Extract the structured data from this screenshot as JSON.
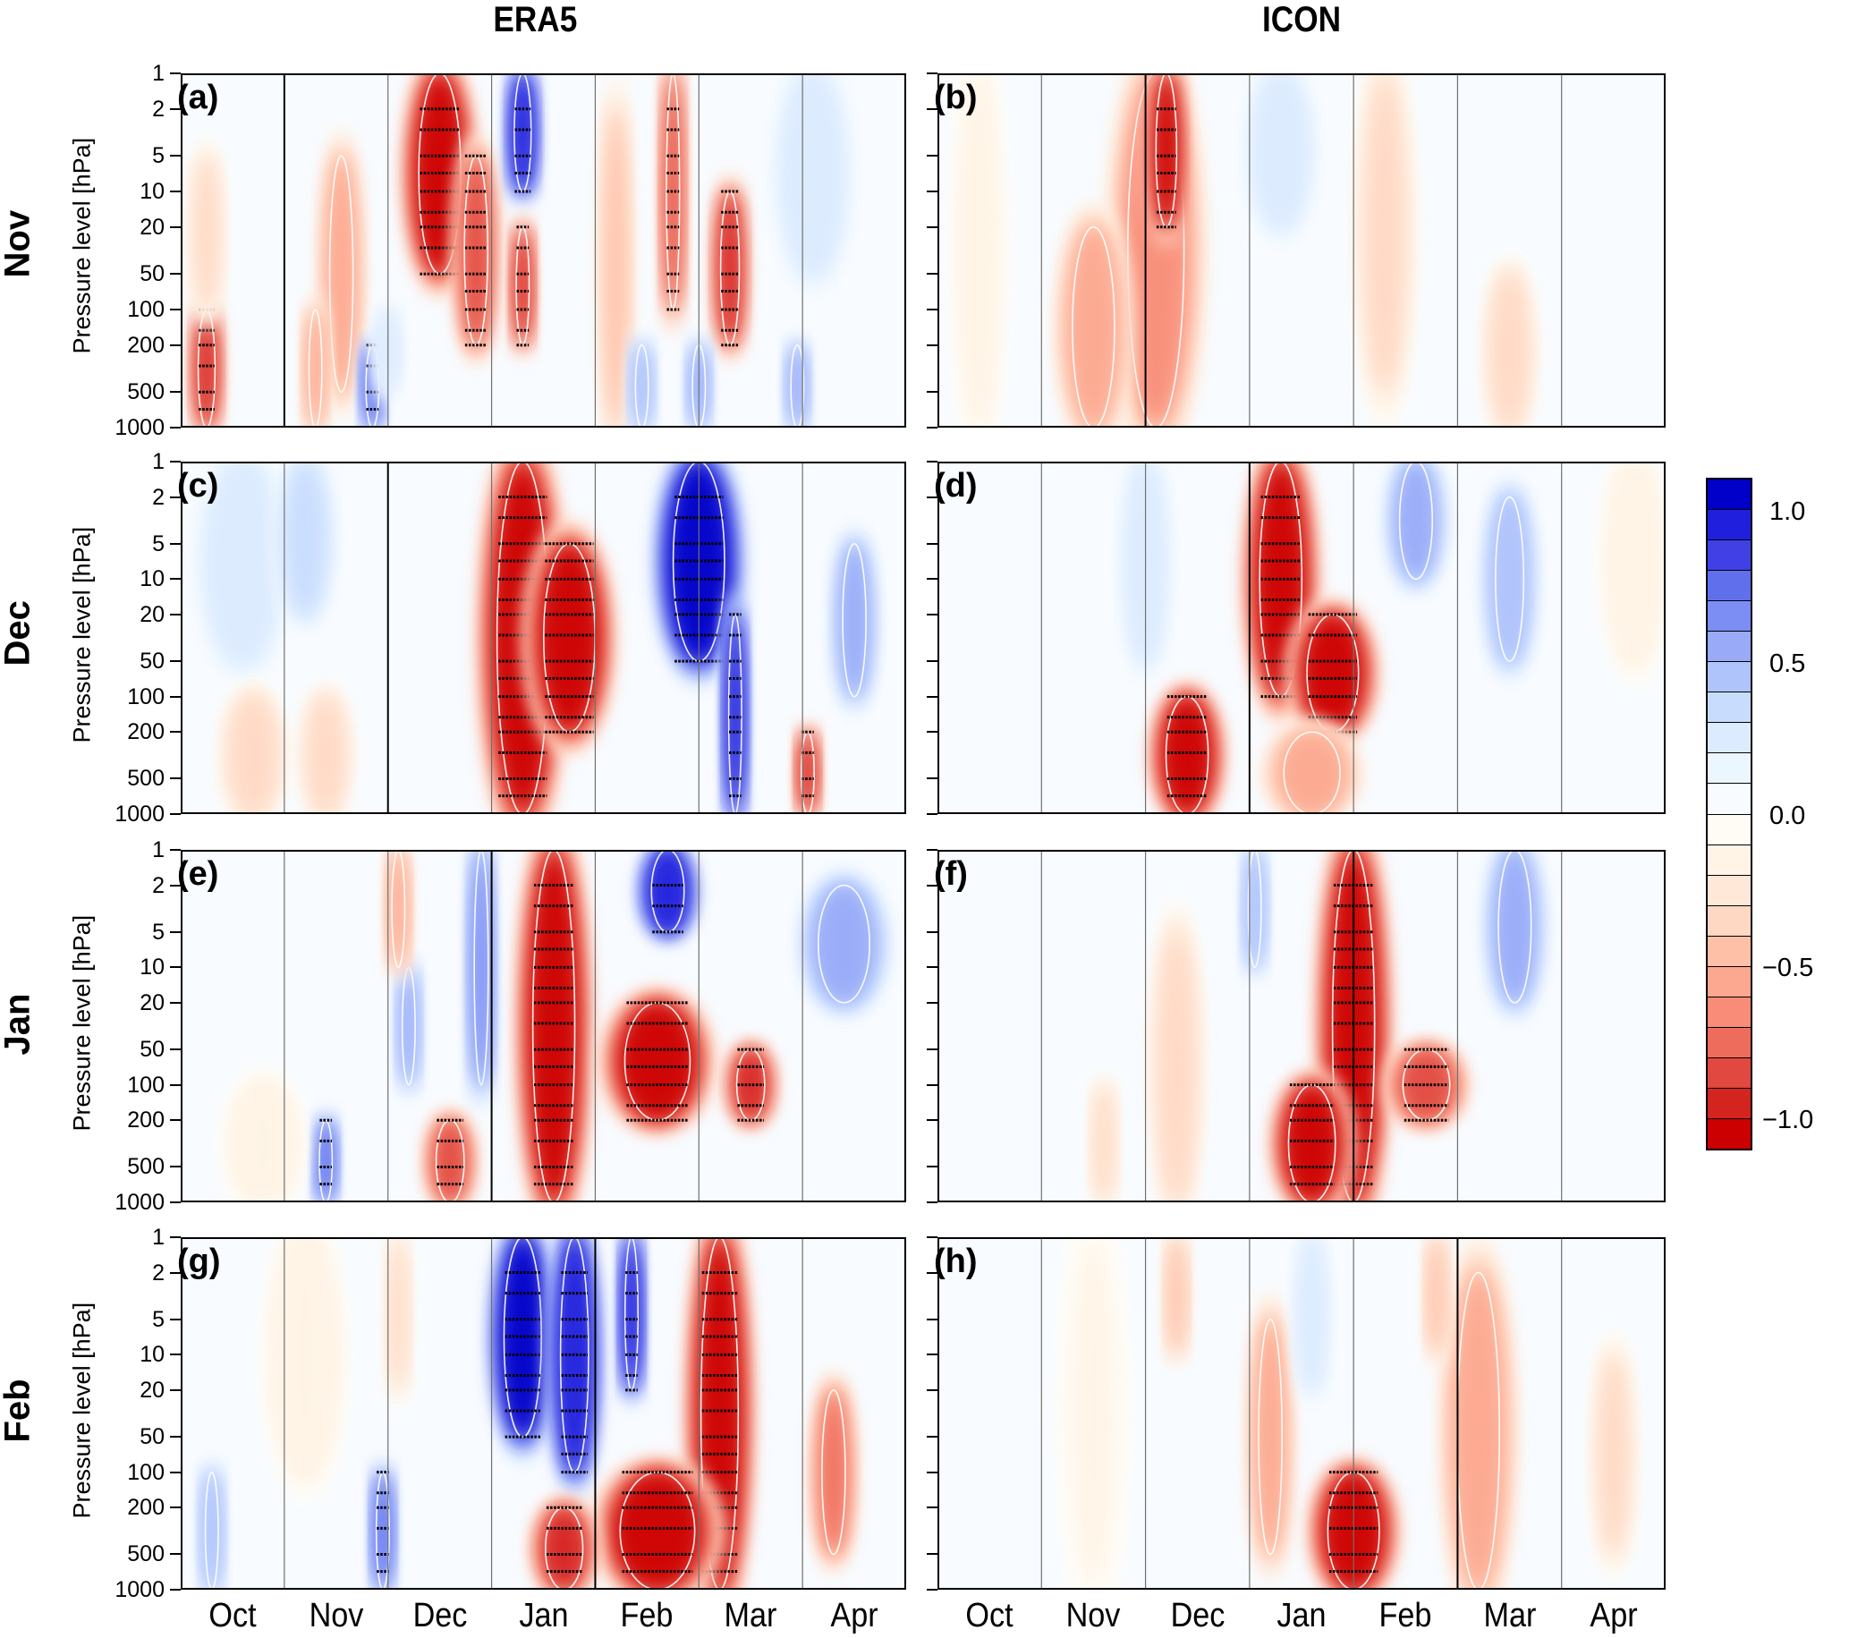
{
  "chart_data": {
    "type": "heatmap",
    "title": "",
    "columns": [
      "ERA5",
      "ICON"
    ],
    "rows": [
      "Nov",
      "Dec",
      "Jan",
      "Feb"
    ],
    "ylabel": "Pressure level [hPa]",
    "y_scale": "log",
    "y_ticks": [
      "1",
      "2",
      "5",
      "10",
      "20",
      "50",
      "100",
      "200",
      "500",
      "1000"
    ],
    "y_range": [
      1,
      1000
    ],
    "x_ticks": [
      "Oct",
      "Nov",
      "Dec",
      "Jan",
      "Feb",
      "Mar",
      "Apr"
    ],
    "x_range_months": [
      0,
      7
    ],
    "colorbar": {
      "ticks": [
        "1.0",
        "0.5",
        "0.0",
        "−0.5",
        "−1.0"
      ],
      "range": [
        -1.1,
        1.1
      ],
      "colors": [
        "#0000c8",
        "#2020dc",
        "#4040e4",
        "#6070ec",
        "#7c8ef4",
        "#98aaf8",
        "#b0c4fc",
        "#c8dcfe",
        "#dcebfe",
        "#ecf6ff",
        "#f8fbff",
        "#fffcf6",
        "#fff4e6",
        "#ffe8d8",
        "#ffd8c4",
        "#ffc0a8",
        "#fca890",
        "#f88c78",
        "#ee6c5c",
        "#e04840",
        "#d42420",
        "#cc0000"
      ]
    },
    "panels": [
      {
        "id": "a",
        "label": "(a)",
        "column": "ERA5",
        "row": "Nov",
        "init_month_index": 1,
        "features": [
          {
            "x": 0.25,
            "p_top": 100,
            "p_bot": 1000,
            "w": 0.18,
            "v": -0.9
          },
          {
            "x": 0.25,
            "p_top": 5,
            "p_bot": 100,
            "w": 0.2,
            "v": -0.3
          },
          {
            "x": 1.55,
            "p_top": 5,
            "p_bot": 500,
            "w": 0.25,
            "v": -0.5
          },
          {
            "x": 1.3,
            "p_top": 100,
            "p_bot": 1000,
            "w": 0.12,
            "v": -0.55
          },
          {
            "x": 1.85,
            "p_top": 200,
            "p_bot": 1000,
            "w": 0.12,
            "v": 0.8
          },
          {
            "x": 2.5,
            "p_top": 1,
            "p_bot": 50,
            "w": 0.45,
            "v": -1.0
          },
          {
            "x": 2.85,
            "p_top": 5,
            "p_bot": 200,
            "w": 0.25,
            "v": -0.8
          },
          {
            "x": 3.3,
            "p_top": 1,
            "p_bot": 10,
            "w": 0.18,
            "v": 1.0
          },
          {
            "x": 3.3,
            "p_top": 20,
            "p_bot": 200,
            "w": 0.12,
            "v": -0.9
          },
          {
            "x": 4.2,
            "p_top": 2,
            "p_bot": 1000,
            "w": 0.18,
            "v": -0.45
          },
          {
            "x": 4.75,
            "p_top": 1,
            "p_bot": 100,
            "w": 0.14,
            "v": -0.85
          },
          {
            "x": 5.3,
            "p_top": 10,
            "p_bot": 200,
            "w": 0.2,
            "v": -0.9
          },
          {
            "x": 6.1,
            "p_top": 1,
            "p_bot": 50,
            "w": 0.5,
            "v": 0.3
          },
          {
            "x": 5.0,
            "p_top": 200,
            "p_bot": 1000,
            "w": 0.12,
            "v": 0.6
          },
          {
            "x": 4.45,
            "p_top": 200,
            "p_bot": 1000,
            "w": 0.1,
            "v": 0.5
          },
          {
            "x": 5.95,
            "p_top": 200,
            "p_bot": 1000,
            "w": 0.12,
            "v": 0.6
          },
          {
            "x": 2.0,
            "p_top": 100,
            "p_bot": 500,
            "w": 0.15,
            "v": 0.3
          }
        ]
      },
      {
        "id": "b",
        "label": "(b)",
        "column": "ICON",
        "row": "Nov",
        "init_month_index": 2,
        "features": [
          {
            "x": 2.1,
            "p_top": 1,
            "p_bot": 1000,
            "w": 0.6,
            "v": -0.6
          },
          {
            "x": 2.2,
            "p_top": 1,
            "p_bot": 20,
            "w": 0.22,
            "v": -1.0
          },
          {
            "x": 1.5,
            "p_top": 20,
            "p_bot": 1000,
            "w": 0.45,
            "v": -0.5
          },
          {
            "x": 3.3,
            "p_top": 1,
            "p_bot": 20,
            "w": 0.45,
            "v": 0.3
          },
          {
            "x": 4.3,
            "p_top": 1,
            "p_bot": 500,
            "w": 0.35,
            "v": -0.3
          },
          {
            "x": 5.5,
            "p_top": 50,
            "p_bot": 1000,
            "w": 0.3,
            "v": -0.35
          },
          {
            "x": 0.4,
            "p_top": 1,
            "p_bot": 1000,
            "w": 0.3,
            "v": -0.15
          }
        ]
      },
      {
        "id": "c",
        "label": "(c)",
        "column": "ERA5",
        "row": "Dec",
        "init_month_index": 2,
        "features": [
          {
            "x": 3.3,
            "p_top": 1,
            "p_bot": 1000,
            "w": 0.55,
            "v": -1.0
          },
          {
            "x": 3.75,
            "p_top": 5,
            "p_bot": 200,
            "w": 0.55,
            "v": -1.0
          },
          {
            "x": 5.0,
            "p_top": 1,
            "p_bot": 50,
            "w": 0.55,
            "v": 1.1
          },
          {
            "x": 5.35,
            "p_top": 20,
            "p_bot": 1000,
            "w": 0.12,
            "v": 1.0
          },
          {
            "x": 6.5,
            "p_top": 5,
            "p_bot": 100,
            "w": 0.25,
            "v": 0.6
          },
          {
            "x": 0.6,
            "p_top": 1,
            "p_bot": 50,
            "w": 0.6,
            "v": 0.25
          },
          {
            "x": 1.2,
            "p_top": 1,
            "p_bot": 20,
            "w": 0.35,
            "v": 0.35
          },
          {
            "x": 6.05,
            "p_top": 200,
            "p_bot": 1000,
            "w": 0.1,
            "v": -0.9
          },
          {
            "x": 0.7,
            "p_top": 100,
            "p_bot": 1000,
            "w": 0.4,
            "v": -0.35
          },
          {
            "x": 1.4,
            "p_top": 100,
            "p_bot": 1000,
            "w": 0.3,
            "v": -0.35
          }
        ]
      },
      {
        "id": "d",
        "label": "(d)",
        "column": "ICON",
        "row": "Dec",
        "init_month_index": 3,
        "features": [
          {
            "x": 3.3,
            "p_top": 1,
            "p_bot": 100,
            "w": 0.45,
            "v": -1.0
          },
          {
            "x": 3.8,
            "p_top": 20,
            "p_bot": 200,
            "w": 0.55,
            "v": -1.0
          },
          {
            "x": 2.4,
            "p_top": 100,
            "p_bot": 1000,
            "w": 0.45,
            "v": -1.0
          },
          {
            "x": 4.6,
            "p_top": 1,
            "p_bot": 10,
            "w": 0.35,
            "v": 0.6
          },
          {
            "x": 5.5,
            "p_top": 2,
            "p_bot": 50,
            "w": 0.3,
            "v": 0.5
          },
          {
            "x": 2.0,
            "p_top": 1,
            "p_bot": 50,
            "w": 0.3,
            "v": 0.3
          },
          {
            "x": 3.6,
            "p_top": 200,
            "p_bot": 1000,
            "w": 0.6,
            "v": -0.5
          },
          {
            "x": 6.7,
            "p_top": 1,
            "p_bot": 50,
            "w": 0.4,
            "v": -0.2
          }
        ]
      },
      {
        "id": "e",
        "label": "(e)",
        "column": "ERA5",
        "row": "Jan",
        "init_month_index": 3,
        "features": [
          {
            "x": 3.6,
            "p_top": 1,
            "p_bot": 1000,
            "w": 0.45,
            "v": -1.0
          },
          {
            "x": 4.6,
            "p_top": 20,
            "p_bot": 200,
            "w": 0.7,
            "v": -1.0
          },
          {
            "x": 5.5,
            "p_top": 50,
            "p_bot": 200,
            "w": 0.3,
            "v": -0.9
          },
          {
            "x": 4.7,
            "p_top": 1,
            "p_bot": 5,
            "w": 0.35,
            "v": 1.0
          },
          {
            "x": 6.4,
            "p_top": 2,
            "p_bot": 20,
            "w": 0.55,
            "v": 0.55
          },
          {
            "x": 2.2,
            "p_top": 10,
            "p_bot": 100,
            "w": 0.12,
            "v": 0.6
          },
          {
            "x": 2.9,
            "p_top": 1,
            "p_bot": 100,
            "w": 0.15,
            "v": 0.7
          },
          {
            "x": 2.1,
            "p_top": 1,
            "p_bot": 10,
            "w": 0.12,
            "v": -0.5
          },
          {
            "x": 2.6,
            "p_top": 200,
            "p_bot": 1000,
            "w": 0.3,
            "v": -0.8
          },
          {
            "x": 1.4,
            "p_top": 200,
            "p_bot": 1000,
            "w": 0.1,
            "v": 0.8
          },
          {
            "x": 0.8,
            "p_top": 100,
            "p_bot": 1000,
            "w": 0.5,
            "v": -0.2
          }
        ]
      },
      {
        "id": "f",
        "label": "(f)",
        "column": "ICON",
        "row": "Jan",
        "init_month_index": 4,
        "features": [
          {
            "x": 4.0,
            "p_top": 1,
            "p_bot": 1000,
            "w": 0.45,
            "v": -1.0
          },
          {
            "x": 3.6,
            "p_top": 100,
            "p_bot": 1000,
            "w": 0.5,
            "v": -1.0
          },
          {
            "x": 4.7,
            "p_top": 50,
            "p_bot": 200,
            "w": 0.5,
            "v": -0.85
          },
          {
            "x": 5.55,
            "p_top": 1,
            "p_bot": 20,
            "w": 0.35,
            "v": 0.6
          },
          {
            "x": 3.05,
            "p_top": 1,
            "p_bot": 10,
            "w": 0.1,
            "v": 0.5
          },
          {
            "x": 2.3,
            "p_top": 5,
            "p_bot": 1000,
            "w": 0.3,
            "v": -0.35
          },
          {
            "x": 1.6,
            "p_top": 100,
            "p_bot": 1000,
            "w": 0.15,
            "v": -0.3
          }
        ]
      },
      {
        "id": "g",
        "label": "(g)",
        "column": "ERA5",
        "row": "Feb",
        "init_month_index": 4,
        "features": [
          {
            "x": 3.3,
            "p_top": 1,
            "p_bot": 50,
            "w": 0.4,
            "v": 1.1
          },
          {
            "x": 3.8,
            "p_top": 1,
            "p_bot": 100,
            "w": 0.3,
            "v": 1.0
          },
          {
            "x": 4.35,
            "p_top": 1,
            "p_bot": 20,
            "w": 0.12,
            "v": 1.0
          },
          {
            "x": 5.2,
            "p_top": 1,
            "p_bot": 1000,
            "w": 0.4,
            "v": -1.0
          },
          {
            "x": 4.6,
            "p_top": 100,
            "p_bot": 1000,
            "w": 0.8,
            "v": -1.0
          },
          {
            "x": 3.7,
            "p_top": 200,
            "p_bot": 1000,
            "w": 0.4,
            "v": -0.9
          },
          {
            "x": 6.3,
            "p_top": 20,
            "p_bot": 500,
            "w": 0.25,
            "v": -0.7
          },
          {
            "x": 2.1,
            "p_top": 1,
            "p_bot": 20,
            "w": 0.1,
            "v": -0.3
          },
          {
            "x": 1.95,
            "p_top": 100,
            "p_bot": 1000,
            "w": 0.1,
            "v": 0.8
          },
          {
            "x": 0.3,
            "p_top": 100,
            "p_bot": 1000,
            "w": 0.1,
            "v": 0.5
          },
          {
            "x": 1.2,
            "p_top": 1,
            "p_bot": 100,
            "w": 0.5,
            "v": -0.2
          }
        ]
      },
      {
        "id": "h",
        "label": "(h)",
        "column": "ICON",
        "row": "Feb",
        "init_month_index": 5,
        "features": [
          {
            "x": 4.0,
            "p_top": 100,
            "p_bot": 1000,
            "w": 0.55,
            "v": -1.0
          },
          {
            "x": 5.2,
            "p_top": 2,
            "p_bot": 1000,
            "w": 0.45,
            "v": -0.55
          },
          {
            "x": 3.2,
            "p_top": 5,
            "p_bot": 500,
            "w": 0.25,
            "v": -0.55
          },
          {
            "x": 3.6,
            "p_top": 1,
            "p_bot": 20,
            "w": 0.2,
            "v": 0.3
          },
          {
            "x": 2.3,
            "p_top": 1,
            "p_bot": 10,
            "w": 0.12,
            "v": -0.45
          },
          {
            "x": 4.8,
            "p_top": 1,
            "p_bot": 10,
            "w": 0.1,
            "v": -0.45
          },
          {
            "x": 6.5,
            "p_top": 10,
            "p_bot": 500,
            "w": 0.25,
            "v": -0.3
          },
          {
            "x": 1.5,
            "p_top": 1,
            "p_bot": 1000,
            "w": 0.4,
            "v": -0.1
          }
        ]
      }
    ]
  }
}
